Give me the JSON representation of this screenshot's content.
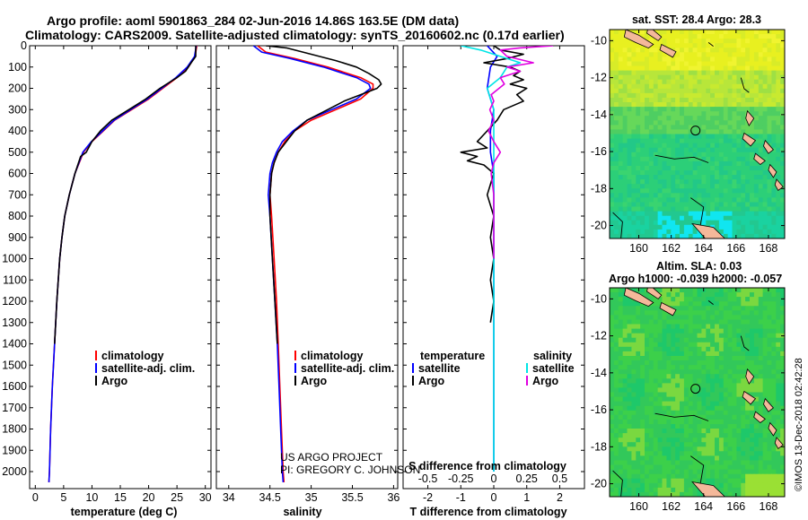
{
  "header": {
    "line1": "Argo profile: aoml 5901863_284 02-Jun-2016 14.86S 163.5E (DM data)",
    "line2": "Climatology: CARS2009. Satellite-adjusted climatology: synTS_20160602.nc (0.17d earlier)"
  },
  "colors": {
    "climatology": "#ff0000",
    "satellite": "#0000ff",
    "argo": "#000000",
    "sal_satellite": "#00e5e5",
    "sal_argo": "#e000e0",
    "land": "#f4b89a"
  },
  "credits": {
    "line1": "US ARGO PROJECT",
    "line2": "PI: GREGORY C. JOHNSON",
    "imos": "©IMOS 13-Dec-2018 02:42:28"
  },
  "chart_data": [
    {
      "type": "line",
      "panel": "temperature",
      "xlabel": "temperature (deg C)",
      "ylabel": "",
      "xlim": [
        -1,
        31
      ],
      "ylim": [
        2080,
        0
      ],
      "xticks": [
        0,
        5,
        10,
        15,
        20,
        25,
        30
      ],
      "yticks": [
        0,
        100,
        200,
        300,
        400,
        500,
        600,
        700,
        800,
        900,
        1000,
        1100,
        1200,
        1300,
        1400,
        1500,
        1600,
        1700,
        1800,
        1900,
        2000
      ],
      "legend": [
        "climatology",
        "satellite-adj. clim.",
        "Argo"
      ],
      "series": [
        {
          "name": "climatology",
          "color": "#ff0000",
          "depth": [
            0,
            50,
            100,
            150,
            200,
            250,
            300,
            350,
            400,
            450,
            500,
            600,
            700,
            800,
            900,
            1000,
            1200,
            1400,
            1600,
            1800,
            2000,
            2050
          ],
          "values": [
            28.5,
            28.2,
            27.0,
            25.0,
            22.5,
            20.0,
            17.0,
            14.0,
            12.0,
            10.0,
            8.5,
            7.0,
            6.0,
            5.2,
            4.7,
            4.3,
            3.8,
            3.4,
            3.0,
            2.7,
            2.5,
            2.4
          ]
        },
        {
          "name": "satellite-adj. clim.",
          "color": "#0000ff",
          "depth": [
            0,
            50,
            100,
            150,
            200,
            250,
            300,
            350,
            400,
            450,
            500,
            600,
            700,
            800,
            900,
            1000,
            1200,
            1400,
            1600,
            1800,
            2000,
            2050
          ],
          "values": [
            28.4,
            28.1,
            26.8,
            24.8,
            22.3,
            19.8,
            16.8,
            13.9,
            11.9,
            9.9,
            8.4,
            7.0,
            6.0,
            5.2,
            4.7,
            4.3,
            3.8,
            3.4,
            3.0,
            2.7,
            2.5,
            2.4
          ]
        },
        {
          "name": "Argo",
          "color": "#000000",
          "depth": [
            0,
            50,
            80,
            120,
            150,
            200,
            250,
            300,
            350,
            400,
            450,
            500,
            520,
            600,
            700,
            800,
            900,
            1000,
            1200,
            1400
          ],
          "values": [
            28.3,
            28.3,
            27.5,
            26.5,
            25.0,
            22.0,
            19.5,
            16.5,
            13.5,
            11.5,
            10.0,
            9.0,
            8.0,
            7.0,
            6.0,
            5.2,
            4.7,
            4.3,
            3.8,
            3.4
          ]
        }
      ]
    },
    {
      "type": "line",
      "panel": "salinity",
      "xlabel": "salinity",
      "xlim": [
        33.85,
        36.05
      ],
      "ylim": [
        2080,
        0
      ],
      "xticks": [
        34,
        34.5,
        35,
        35.5,
        36
      ],
      "legend": [
        "climatology",
        "satellite-adj. clim.",
        "Argo"
      ],
      "series": [
        {
          "name": "climatology",
          "color": "#ff0000",
          "depth": [
            0,
            30,
            60,
            100,
            150,
            180,
            200,
            250,
            300,
            350,
            400,
            450,
            500,
            550,
            600,
            700,
            800,
            1000,
            1200,
            1400,
            1600,
            1800,
            2000,
            2050
          ],
          "values": [
            34.35,
            34.45,
            34.8,
            35.2,
            35.6,
            35.75,
            35.75,
            35.6,
            35.3,
            35.0,
            34.8,
            34.68,
            34.6,
            34.55,
            34.52,
            34.5,
            34.52,
            34.55,
            34.58,
            34.6,
            34.62,
            34.64,
            34.66,
            34.67
          ]
        },
        {
          "name": "satellite-adj. clim.",
          "color": "#0000ff",
          "depth": [
            0,
            30,
            60,
            100,
            150,
            180,
            200,
            250,
            300,
            350,
            400,
            450,
            500,
            550,
            600,
            700,
            800,
            1000,
            1200,
            1400,
            1600,
            1800,
            2000,
            2050
          ],
          "values": [
            34.3,
            34.4,
            34.75,
            35.15,
            35.55,
            35.7,
            35.72,
            35.55,
            35.25,
            34.95,
            34.78,
            34.65,
            34.58,
            34.53,
            34.5,
            34.48,
            34.5,
            34.53,
            34.56,
            34.59,
            34.61,
            34.63,
            34.65,
            34.66
          ]
        },
        {
          "name": "Argo",
          "color": "#000000",
          "depth": [
            0,
            10,
            40,
            70,
            100,
            130,
            160,
            180,
            200,
            230,
            260,
            300,
            350,
            400,
            450,
            500,
            550,
            600,
            700,
            800,
            1000,
            1200,
            1400
          ],
          "values": [
            34.45,
            34.7,
            35.0,
            35.3,
            35.55,
            35.7,
            35.82,
            35.85,
            35.8,
            35.6,
            35.4,
            35.2,
            34.95,
            34.8,
            34.7,
            34.6,
            34.55,
            34.52,
            34.5,
            34.5,
            34.53,
            34.56,
            34.59
          ]
        }
      ]
    },
    {
      "type": "line",
      "panel": "difference",
      "xlabel": "T difference from climatology",
      "xlabel_top": "S difference from climatology",
      "xlim": [
        -2.75,
        2.75
      ],
      "ylim": [
        2080,
        0
      ],
      "xticks": [
        -2,
        -1,
        0,
        1,
        2
      ],
      "xticks_s": [
        -0.5,
        -0.25,
        0,
        0.25,
        0.5
      ],
      "legend_left_title": "temperature",
      "legend_right_title": "salinity",
      "legend_left": [
        "satellite",
        "Argo"
      ],
      "legend_right": [
        "satellite",
        "Argo"
      ],
      "series": [
        {
          "name": "T satellite",
          "color": "#0000ff",
          "depth": [
            0,
            50,
            100,
            200,
            300,
            400,
            500,
            600,
            800,
            1000,
            1500,
            2000
          ],
          "values": [
            -0.2,
            0.1,
            -0.1,
            -0.2,
            0.0,
            -0.1,
            -0.1,
            0.0,
            0.0,
            0.0,
            0.0,
            0.0
          ]
        },
        {
          "name": "T Argo",
          "color": "#000000",
          "depth": [
            0,
            20,
            40,
            60,
            80,
            100,
            120,
            140,
            160,
            180,
            200,
            230,
            260,
            300,
            350,
            400,
            450,
            480,
            500,
            520,
            540,
            560,
            600,
            700,
            800,
            900,
            1000,
            1100,
            1200,
            1300
          ],
          "values": [
            0.0,
            0.2,
            0.9,
            0.4,
            -0.3,
            0.5,
            0.8,
            0.6,
            0.9,
            0.5,
            1.0,
            0.7,
            0.9,
            0.3,
            0.1,
            -0.2,
            -0.5,
            -0.2,
            -1.0,
            -0.5,
            -0.8,
            -0.3,
            0.0,
            -0.2,
            0.0,
            -0.1,
            0.0,
            -0.1,
            0.0,
            -0.1
          ]
        },
        {
          "name": "S satellite",
          "color": "#00e5e5",
          "depth": [
            0,
            20,
            50,
            80,
            100,
            150,
            200,
            300,
            400,
            600,
            800,
            1000,
            1500,
            2000
          ],
          "values": [
            -0.25,
            -0.1,
            0.05,
            0.2,
            0.1,
            0.05,
            -0.05,
            0.0,
            0.0,
            0.0,
            0.0,
            0.0,
            0.0,
            0.0
          ]
        },
        {
          "name": "S Argo",
          "color": "#e000e0",
          "depth": [
            0,
            10,
            20,
            50,
            80,
            100,
            120,
            150,
            180,
            200,
            230,
            260,
            300,
            350,
            400,
            450,
            500,
            550,
            600,
            700,
            800,
            900,
            1000
          ],
          "values": [
            0.45,
            0.2,
            0.05,
            0.1,
            0.3,
            0.1,
            0.2,
            0.05,
            0.08,
            0.04,
            -0.02,
            0.0,
            -0.03,
            0.0,
            -0.04,
            0.0,
            0.05,
            0.0,
            -0.02,
            0.0,
            0.0,
            0.0,
            0.0
          ]
        }
      ]
    }
  ],
  "maps": [
    {
      "title": "sat. SST: 28.4 Argo: 28.3",
      "xticks": [
        160,
        162,
        164,
        166,
        168
      ],
      "yticks": [
        -10,
        -12,
        -14,
        -16,
        -18,
        -20
      ]
    },
    {
      "title1": "Altim. SLA: 0.03",
      "title2": "Argo h1000: -0.039 h2000: -0.057",
      "xticks": [
        160,
        162,
        164,
        166,
        168
      ],
      "yticks": [
        -10,
        -12,
        -14,
        -16,
        -18,
        -20
      ]
    }
  ]
}
